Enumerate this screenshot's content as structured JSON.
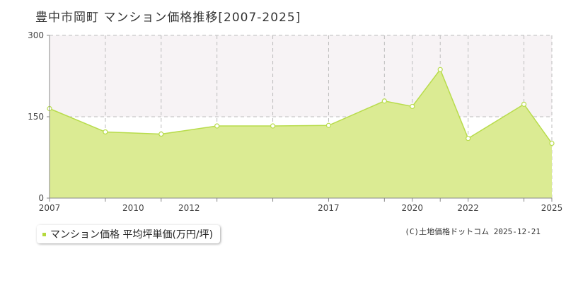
{
  "title": "豊中市岡町 マンション価格推移[2007-2025]",
  "legend": {
    "label": "マンション価格 平均坪単価(万円/坪)"
  },
  "credit": "(C)土地価格ドットコム 2025-12-21",
  "colors": {
    "area_fill": "#dbeb93",
    "area_stroke": "#b8dc4c",
    "point_fill": "#ffffff",
    "grid": "#bdbdbd",
    "highlight_band": "#f7f3f5"
  },
  "chart_data": {
    "type": "area",
    "x": [
      2007,
      2009,
      2011,
      2013,
      2015,
      2017,
      2019,
      2020,
      2021,
      2022,
      2024,
      2025
    ],
    "series": [
      {
        "name": "マンション価格 平均坪単価(万円/坪)",
        "values": [
          165,
          122,
          118,
          133,
          133,
          134,
          179,
          169,
          237,
          110,
          173,
          101
        ]
      }
    ],
    "x_ticks": [
      2007,
      2010,
      2012,
      2017,
      2020,
      2022,
      2025
    ],
    "y_ticks": [
      0,
      150,
      300
    ],
    "xlim": [
      2007,
      2025
    ],
    "ylim": [
      0,
      300
    ],
    "grid": true,
    "legend_position": "bottom-left"
  }
}
